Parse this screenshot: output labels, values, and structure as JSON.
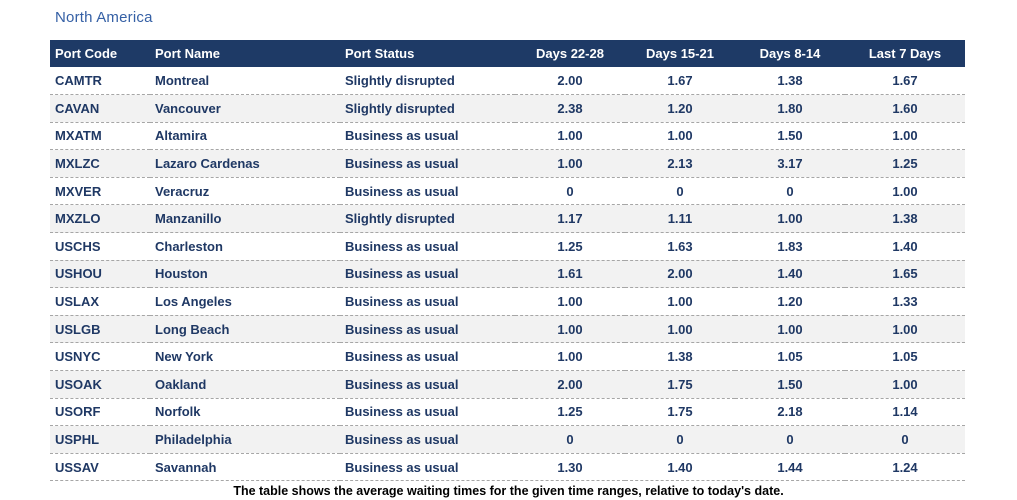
{
  "title": "North America",
  "table": {
    "columns": [
      "Port Code",
      "Port Name",
      "Port Status",
      "Days 22-28",
      "Days 15-21",
      "Days 8-14",
      "Last 7 Days"
    ],
    "rows": [
      [
        "CAMTR",
        "Montreal",
        "Slightly disrupted",
        "2.00",
        "1.67",
        "1.38",
        "1.67"
      ],
      [
        "CAVAN",
        "Vancouver",
        "Slightly disrupted",
        "2.38",
        "1.20",
        "1.80",
        "1.60"
      ],
      [
        "MXATM",
        "Altamira",
        "Business as usual",
        "1.00",
        "1.00",
        "1.50",
        "1.00"
      ],
      [
        "MXLZC",
        "Lazaro Cardenas",
        "Business as usual",
        "1.00",
        "2.13",
        "3.17",
        "1.25"
      ],
      [
        "MXVER",
        "Veracruz",
        "Business as usual",
        "0",
        "0",
        "0",
        "1.00"
      ],
      [
        "MXZLO",
        "Manzanillo",
        "Slightly disrupted",
        "1.17",
        "1.11",
        "1.00",
        "1.38"
      ],
      [
        "USCHS",
        "Charleston",
        "Business as usual",
        "1.25",
        "1.63",
        "1.83",
        "1.40"
      ],
      [
        "USHOU",
        "Houston",
        "Business as usual",
        "1.61",
        "2.00",
        "1.40",
        "1.65"
      ],
      [
        "USLAX",
        "Los Angeles",
        "Business as usual",
        "1.00",
        "1.00",
        "1.20",
        "1.33"
      ],
      [
        "USLGB",
        "Long Beach",
        "Business as usual",
        "1.00",
        "1.00",
        "1.00",
        "1.00"
      ],
      [
        "USNYC",
        "New York",
        "Business as usual",
        "1.00",
        "1.38",
        "1.05",
        "1.05"
      ],
      [
        "USOAK",
        "Oakland",
        "Business as usual",
        "2.00",
        "1.75",
        "1.50",
        "1.00"
      ],
      [
        "USORF",
        "Norfolk",
        "Business as usual",
        "1.25",
        "1.75",
        "2.18",
        "1.14"
      ],
      [
        "USPHL",
        "Philadelphia",
        "Business as usual",
        "0",
        "0",
        "0",
        "0"
      ],
      [
        "USSAV",
        "Savannah",
        "Business as usual",
        "1.30",
        "1.40",
        "1.44",
        "1.24"
      ]
    ]
  },
  "caption": "The table shows the average waiting times for the given time ranges, relative to today's date.",
  "colors": {
    "header_bg": "#1e3a66",
    "header_text": "#ffffff",
    "cell_text": "#1f3864",
    "stripe_bg": "#f2f2f2",
    "title_text": "#3560a5",
    "separator": "#a6a6a6"
  }
}
